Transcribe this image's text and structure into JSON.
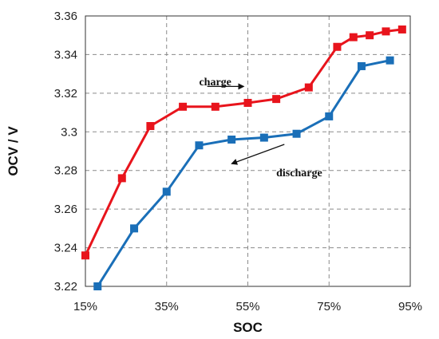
{
  "chart_data": {
    "type": "line",
    "title": "",
    "xlabel": "SOC",
    "ylabel": "OCV / V",
    "xlim": [
      15,
      95
    ],
    "ylim": [
      3.22,
      3.36
    ],
    "x_ticks": [
      15,
      35,
      55,
      75,
      95
    ],
    "x_tick_labels": [
      "15%",
      "35%",
      "55%",
      "75%",
      "95%"
    ],
    "y_ticks": [
      3.22,
      3.24,
      3.26,
      3.28,
      3.3,
      3.32,
      3.34,
      3.36
    ],
    "y_tick_labels": [
      "3.22",
      "3.24",
      "3.26",
      "3.28",
      "3.3",
      "3.32",
      "3.34",
      "3.36"
    ],
    "grid": true,
    "legend": "none",
    "series": [
      {
        "color": "#e8141c",
        "x": [
          15,
          24,
          31,
          39,
          47,
          55,
          62,
          70,
          77,
          81,
          85,
          89,
          93
        ],
        "y": [
          3.236,
          3.276,
          3.303,
          3.313,
          3.313,
          3.315,
          3.317,
          3.323,
          3.344,
          3.349,
          3.35,
          3.352,
          3.353
        ]
      },
      {
        "color": "#1a6fb8",
        "x": [
          18,
          27,
          35,
          43,
          51,
          59,
          67,
          75,
          83,
          90
        ],
        "y": [
          3.22,
          3.25,
          3.269,
          3.293,
          3.296,
          3.297,
          3.299,
          3.308,
          3.334,
          3.337
        ]
      }
    ],
    "annotations": [
      {
        "text": "charge",
        "x": 43,
        "y": 3.324,
        "arrow_from": [
          45,
          3.3235
        ],
        "arrow_to": [
          54,
          3.3235
        ]
      },
      {
        "text": "discharge",
        "x": 62,
        "y": 3.277,
        "arrow_from": [
          64,
          3.2935
        ],
        "arrow_to": [
          51,
          3.2835
        ]
      }
    ]
  }
}
